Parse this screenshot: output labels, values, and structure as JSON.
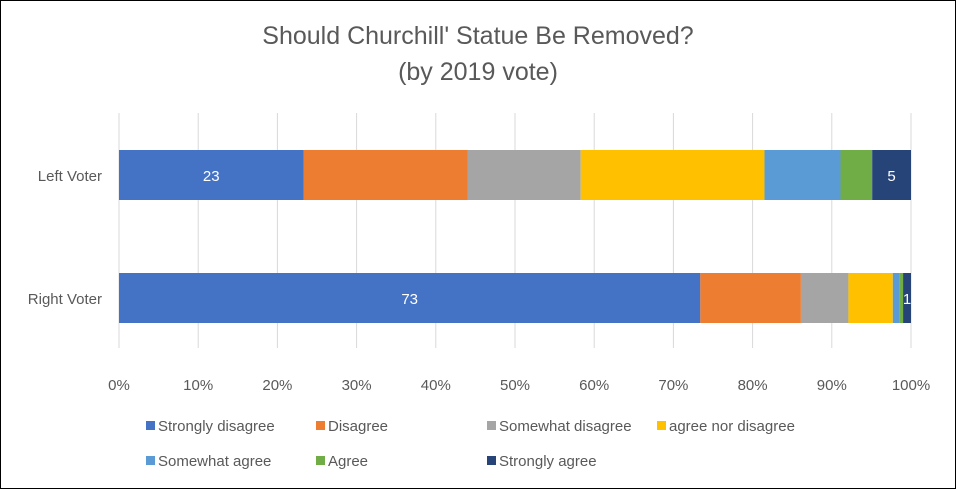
{
  "chart_data": {
    "type": "bar",
    "orientation": "horizontal",
    "stacked": "100%",
    "title": "Should Churchill' Statue Be Removed?",
    "subtitle": "(by 2019 vote)",
    "categories": [
      "Left Voter",
      "Right Voter"
    ],
    "series": [
      {
        "name": "Strongly disagree",
        "color": "#4472C4",
        "values": [
          23.3,
          73.4
        ]
      },
      {
        "name": "Disagree",
        "color": "#ED7D31",
        "values": [
          20.7,
          12.7
        ]
      },
      {
        "name": "Somewhat disagree",
        "color": "#A5A5A5",
        "values": [
          14.3,
          6.0
        ]
      },
      {
        "name": "agree nor disagree",
        "color": "#FFC000",
        "values": [
          23.2,
          5.6
        ]
      },
      {
        "name": "Somewhat agree",
        "color": "#5B9BD5",
        "values": [
          9.6,
          0.8
        ]
      },
      {
        "name": "Agree",
        "color": "#70AD47",
        "values": [
          4.0,
          0.5
        ]
      },
      {
        "name": "Strongly agree",
        "color": "#264478",
        "values": [
          4.9,
          1.0
        ]
      }
    ],
    "data_labels": [
      {
        "series": "Strongly disagree",
        "category": "Left Voter",
        "text": "23"
      },
      {
        "series": "Strongly agree",
        "category": "Left Voter",
        "text": "5"
      },
      {
        "series": "Strongly disagree",
        "category": "Right Voter",
        "text": "73"
      },
      {
        "series": "Strongly agree",
        "category": "Right Voter",
        "text": "1"
      }
    ],
    "xlim": [
      0,
      100
    ],
    "x_ticks": [
      "0%",
      "10%",
      "20%",
      "30%",
      "40%",
      "50%",
      "60%",
      "70%",
      "80%",
      "90%",
      "100%"
    ],
    "grid": true,
    "legend_position": "bottom"
  }
}
